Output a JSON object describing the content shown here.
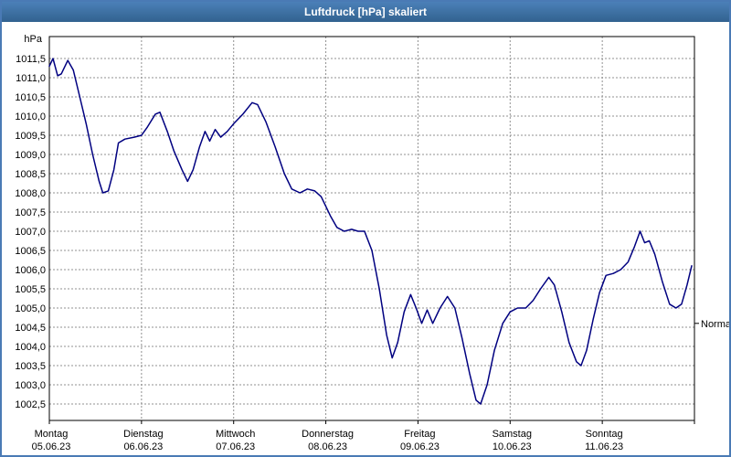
{
  "window": {
    "title": "Luftdruck [hPa] skaliert"
  },
  "colors": {
    "title_bar": "#3a72ad",
    "title_text": "#ffffff",
    "border": "#4a7ab5",
    "grid": "#909090",
    "frame": "#000000",
    "line": "#000080",
    "background": "#ffffff"
  },
  "chart_data": {
    "type": "line",
    "title": "Luftdruck [hPa] skaliert",
    "ylabel": "hPa",
    "unit_label": "hPa",
    "ylim": [
      1002.5,
      1011.5
    ],
    "ytick_step": 0.5,
    "ytick_labels": [
      "1011,5",
      "1011,0",
      "1010,5",
      "1010,0",
      "1009,5",
      "1009,0",
      "1008,5",
      "1008,0",
      "1007,5",
      "1007,0",
      "1006,5",
      "1006,0",
      "1005,5",
      "1005,0",
      "1004,5",
      "1004,0",
      "1003,5",
      "1003,0",
      "1002,5"
    ],
    "xlim": [
      0,
      7
    ],
    "grid": "dashed",
    "legend_position": "none",
    "x_days": [
      {
        "name": "Montag",
        "date": "05.06.23"
      },
      {
        "name": "Dienstag",
        "date": "06.06.23"
      },
      {
        "name": "Mittwoch",
        "date": "07.06.23"
      },
      {
        "name": "Donnerstag",
        "date": "08.06.23"
      },
      {
        "name": "Freitag",
        "date": "09.06.23"
      },
      {
        "name": "Samstag",
        "date": "10.06.23"
      },
      {
        "name": "Sonntag",
        "date": "11.06.23"
      }
    ],
    "normal_marker": {
      "label": "Normal",
      "value": 1004.6
    },
    "series": [
      {
        "name": "Luftdruck",
        "color": "#000080",
        "points": [
          [
            0.0,
            1011.3
          ],
          [
            0.04,
            1011.5
          ],
          [
            0.09,
            1011.05
          ],
          [
            0.13,
            1011.1
          ],
          [
            0.2,
            1011.45
          ],
          [
            0.26,
            1011.2
          ],
          [
            0.33,
            1010.5
          ],
          [
            0.4,
            1009.8
          ],
          [
            0.47,
            1009.0
          ],
          [
            0.54,
            1008.3
          ],
          [
            0.58,
            1008.0
          ],
          [
            0.64,
            1008.05
          ],
          [
            0.7,
            1008.6
          ],
          [
            0.75,
            1009.3
          ],
          [
            0.82,
            1009.4
          ],
          [
            0.92,
            1009.45
          ],
          [
            1.0,
            1009.5
          ],
          [
            1.06,
            1009.7
          ],
          [
            1.15,
            1010.05
          ],
          [
            1.2,
            1010.1
          ],
          [
            1.28,
            1009.6
          ],
          [
            1.35,
            1009.1
          ],
          [
            1.44,
            1008.6
          ],
          [
            1.5,
            1008.3
          ],
          [
            1.56,
            1008.6
          ],
          [
            1.63,
            1009.2
          ],
          [
            1.69,
            1009.6
          ],
          [
            1.74,
            1009.35
          ],
          [
            1.8,
            1009.65
          ],
          [
            1.86,
            1009.45
          ],
          [
            1.93,
            1009.6
          ],
          [
            2.0,
            1009.8
          ],
          [
            2.1,
            1010.05
          ],
          [
            2.2,
            1010.35
          ],
          [
            2.26,
            1010.3
          ],
          [
            2.35,
            1009.85
          ],
          [
            2.45,
            1009.2
          ],
          [
            2.55,
            1008.5
          ],
          [
            2.63,
            1008.1
          ],
          [
            2.72,
            1008.0
          ],
          [
            2.8,
            1008.1
          ],
          [
            2.88,
            1008.05
          ],
          [
            2.95,
            1007.9
          ],
          [
            3.05,
            1007.4
          ],
          [
            3.12,
            1007.1
          ],
          [
            3.2,
            1007.0
          ],
          [
            3.28,
            1007.05
          ],
          [
            3.35,
            1007.0
          ],
          [
            3.42,
            1007.0
          ],
          [
            3.5,
            1006.5
          ],
          [
            3.58,
            1005.5
          ],
          [
            3.66,
            1004.3
          ],
          [
            3.72,
            1003.7
          ],
          [
            3.78,
            1004.1
          ],
          [
            3.85,
            1004.9
          ],
          [
            3.92,
            1005.35
          ],
          [
            3.98,
            1005.0
          ],
          [
            4.04,
            1004.6
          ],
          [
            4.1,
            1004.95
          ],
          [
            4.16,
            1004.6
          ],
          [
            4.24,
            1005.0
          ],
          [
            4.32,
            1005.3
          ],
          [
            4.4,
            1005.0
          ],
          [
            4.48,
            1004.2
          ],
          [
            4.56,
            1003.3
          ],
          [
            4.63,
            1002.6
          ],
          [
            4.68,
            1002.5
          ],
          [
            4.75,
            1003.0
          ],
          [
            4.83,
            1003.9
          ],
          [
            4.92,
            1004.6
          ],
          [
            5.0,
            1004.9
          ],
          [
            5.08,
            1005.0
          ],
          [
            5.17,
            1005.0
          ],
          [
            5.25,
            1005.2
          ],
          [
            5.33,
            1005.5
          ],
          [
            5.42,
            1005.8
          ],
          [
            5.48,
            1005.6
          ],
          [
            5.56,
            1004.9
          ],
          [
            5.64,
            1004.1
          ],
          [
            5.72,
            1003.6
          ],
          [
            5.77,
            1003.5
          ],
          [
            5.83,
            1003.9
          ],
          [
            5.9,
            1004.7
          ],
          [
            5.97,
            1005.4
          ],
          [
            6.04,
            1005.85
          ],
          [
            6.12,
            1005.9
          ],
          [
            6.2,
            1006.0
          ],
          [
            6.28,
            1006.2
          ],
          [
            6.35,
            1006.6
          ],
          [
            6.41,
            1007.0
          ],
          [
            6.46,
            1006.7
          ],
          [
            6.51,
            1006.75
          ],
          [
            6.57,
            1006.4
          ],
          [
            6.65,
            1005.7
          ],
          [
            6.73,
            1005.1
          ],
          [
            6.8,
            1005.0
          ],
          [
            6.86,
            1005.1
          ],
          [
            6.92,
            1005.6
          ],
          [
            6.97,
            1006.1
          ]
        ]
      }
    ]
  }
}
